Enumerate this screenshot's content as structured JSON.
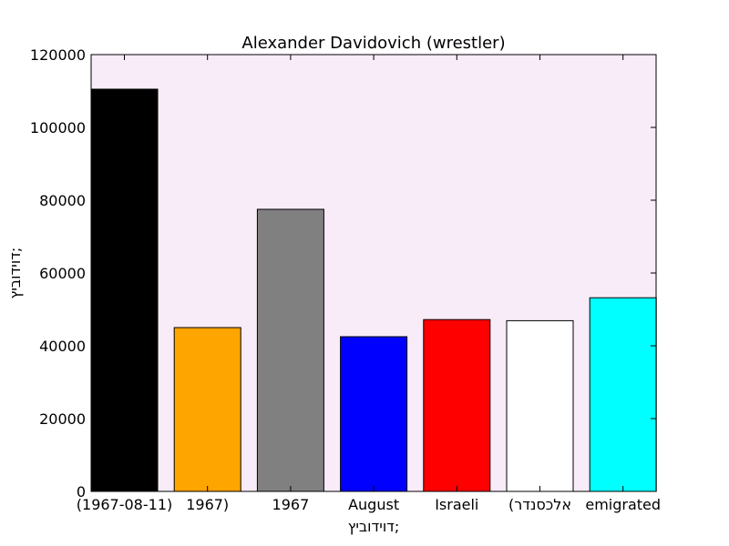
{
  "chart_data": {
    "type": "bar",
    "title": "Alexander Davidovich (wrestler)",
    "xlabel": "דוידוביץ;",
    "ylabel": "דוידוביץ;",
    "categories": [
      "(1967-08-11)",
      "1967)",
      "1967",
      "August",
      "Israeli",
      "(אלכסנדר",
      "emigrated"
    ],
    "values": [
      110500,
      45000,
      77500,
      42500,
      47200,
      46900,
      53200
    ],
    "colors": [
      "#000000",
      "#ffa500",
      "#808080",
      "#0000ff",
      "#ff0000",
      "#ffffff",
      "#00ffff"
    ],
    "ylim": [
      0,
      120000
    ],
    "yticks": [
      0,
      20000,
      40000,
      60000,
      80000,
      100000,
      120000
    ],
    "plot_background": "#f8ecf8",
    "grid": false,
    "legend": "none"
  }
}
